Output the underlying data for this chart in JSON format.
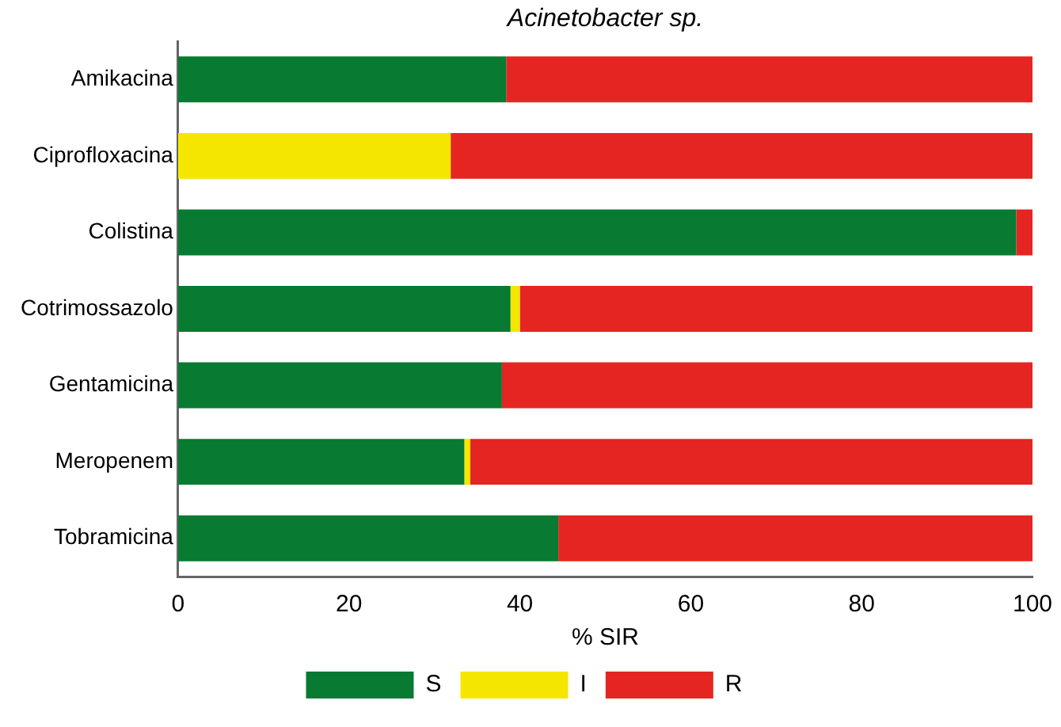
{
  "chart_data": {
    "type": "bar",
    "title": "Acinetobacter sp.",
    "xlabel": "% SIR",
    "orientation": "horizontal",
    "stacked": true,
    "categories": [
      "Amikacina",
      "Ciprofloxacina",
      "Colistina",
      "Cotrimossazolo",
      "Gentamicina",
      "Meropenem",
      "Tobramicina"
    ],
    "series": [
      {
        "name": "S",
        "color": "#087a32",
        "values": [
          38.4,
          0,
          98.1,
          38.9,
          37.9,
          33.5,
          44.5
        ]
      },
      {
        "name": "I",
        "color": "#f5e600",
        "values": [
          0,
          31.9,
          0,
          1.1,
          0,
          0.7,
          0
        ]
      },
      {
        "name": "R",
        "color": "#e52521",
        "values": [
          61.6,
          68.1,
          1.9,
          60.0,
          62.1,
          65.8,
          55.5
        ]
      }
    ],
    "xlim": [
      0,
      100
    ],
    "xticks": [
      0,
      20,
      40,
      60,
      80,
      100
    ],
    "grid": false,
    "legend": "bottom"
  }
}
